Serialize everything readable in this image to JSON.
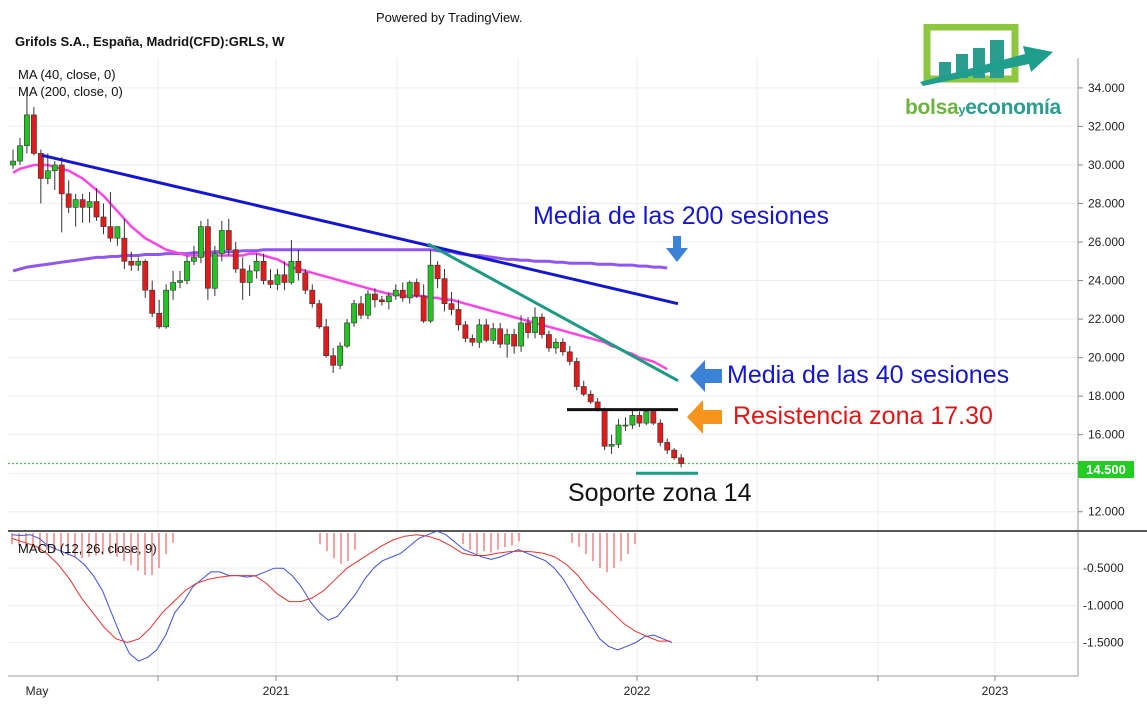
{
  "header": {
    "powered": "Powered by TradingView.",
    "title": "Grifols S.A., España, Madrid(CFD):GRLS, W",
    "ma40_label": "MA (40, close, 0)",
    "ma200_label": "MA (200, close, 0)",
    "macd_label": "MACD (12, 26, close, 9)"
  },
  "logo": {
    "word1": "bolsa",
    "word2": "y",
    "word3": "economía"
  },
  "annotations": {
    "ma200": "Media de las 200 sesiones",
    "ma40": "Media de las 40 sesiones",
    "resistance": "Resistencia zona 17.30",
    "support": "Soporte zona 14"
  },
  "colors": {
    "up": "#22c322",
    "down": "#e11b1b",
    "ma40": "#ff44e6",
    "ma200": "#9057f0",
    "trend_blue": "#1414d4",
    "trend_teal": "#1d9a83",
    "macd": "#3b4fe0",
    "signal": "#e8312a",
    "ann_blue": "#1515d0",
    "ann_red": "#e01515",
    "arrow_blue": "#3b82d6",
    "arrow_orange": "#f7941d",
    "price_tag": "#22cc22"
  },
  "chart_data": {
    "type": "candlestick",
    "symbol": "Grifols S.A., España, Madrid(CFD):GRLS, W",
    "last_price": "14.500",
    "x_labels": [
      "May",
      "2021",
      "2022",
      "2023"
    ],
    "y_ticks": [
      "12.000",
      "14.000",
      "16.000",
      "18.000",
      "20.000",
      "22.000",
      "24.000",
      "26.000",
      "28.000",
      "30.000",
      "32.000",
      "34.000"
    ],
    "y_range": [
      11,
      35.5
    ],
    "macd_ticks": [
      "-0.5000",
      "-1.0000",
      "-1.5000"
    ],
    "macd_range": [
      -1.95,
      0.0
    ],
    "candles": [
      [
        30.0,
        30.8,
        29.8,
        30.2
      ],
      [
        30.2,
        31.4,
        30.0,
        31.0
      ],
      [
        31.0,
        34.0,
        30.6,
        32.6
      ],
      [
        32.6,
        33.0,
        30.5,
        30.6
      ],
      [
        30.6,
        30.8,
        28.0,
        29.3
      ],
      [
        29.3,
        30.6,
        29.0,
        29.7
      ],
      [
        29.7,
        30.2,
        28.7,
        30.0
      ],
      [
        30.0,
        30.4,
        26.5,
        28.5
      ],
      [
        28.5,
        29.2,
        27.5,
        27.8
      ],
      [
        27.8,
        28.5,
        26.8,
        28.2
      ],
      [
        28.2,
        28.5,
        27.0,
        27.8
      ],
      [
        27.8,
        28.6,
        27.0,
        28.1
      ],
      [
        28.1,
        28.8,
        27.1,
        27.3
      ],
      [
        27.3,
        28.0,
        26.4,
        26.8
      ],
      [
        26.8,
        28.6,
        26.0,
        26.2
      ],
      [
        26.2,
        26.8,
        25.8,
        26.8
      ],
      [
        26.2,
        27.2,
        24.6,
        25.0
      ],
      [
        25.0,
        25.5,
        24.5,
        24.8
      ],
      [
        24.8,
        25.2,
        24.5,
        25.0
      ],
      [
        25.0,
        25.1,
        23.1,
        23.5
      ],
      [
        23.5,
        24.0,
        22.1,
        22.3
      ],
      [
        22.3,
        23.0,
        21.5,
        21.6
      ],
      [
        21.6,
        23.8,
        21.5,
        23.5
      ],
      [
        23.5,
        24.5,
        23.0,
        23.9
      ],
      [
        23.9,
        24.5,
        23.6,
        24.0
      ],
      [
        24.0,
        25.3,
        23.8,
        25.0
      ],
      [
        25.0,
        25.8,
        24.8,
        25.2
      ],
      [
        25.2,
        27.1,
        24.9,
        26.8
      ],
      [
        26.8,
        27.2,
        23.0,
        23.6
      ],
      [
        23.6,
        25.8,
        23.2,
        25.4
      ],
      [
        25.4,
        27.1,
        25.0,
        26.6
      ],
      [
        26.6,
        27.2,
        25.3,
        25.6
      ],
      [
        25.6,
        26.0,
        24.4,
        24.6
      ],
      [
        24.6,
        25.2,
        23.0,
        23.9
      ],
      [
        23.9,
        24.8,
        23.2,
        24.5
      ],
      [
        24.5,
        25.4,
        24.1,
        25.0
      ],
      [
        25.0,
        25.4,
        23.8,
        24.0
      ],
      [
        24.0,
        24.6,
        23.6,
        23.8
      ],
      [
        23.8,
        24.6,
        23.5,
        24.3
      ],
      [
        24.3,
        25.0,
        23.5,
        23.9
      ],
      [
        23.9,
        26.1,
        23.8,
        25.0
      ],
      [
        25.0,
        25.6,
        24.0,
        24.4
      ],
      [
        24.4,
        24.6,
        23.3,
        23.5
      ],
      [
        23.5,
        23.8,
        22.6,
        22.8
      ],
      [
        22.8,
        23.0,
        21.5,
        21.6
      ],
      [
        21.6,
        22.0,
        20.0,
        20.1
      ],
      [
        20.1,
        20.5,
        19.2,
        19.6
      ],
      [
        19.6,
        20.8,
        19.4,
        20.6
      ],
      [
        20.6,
        22.0,
        20.5,
        21.8
      ],
      [
        21.8,
        23.0,
        21.6,
        22.8
      ],
      [
        22.8,
        23.2,
        22.0,
        22.2
      ],
      [
        22.2,
        23.5,
        22.0,
        23.3
      ],
      [
        23.3,
        23.6,
        22.6,
        23.0
      ],
      [
        23.0,
        23.2,
        22.7,
        22.9
      ],
      [
        22.9,
        23.4,
        22.5,
        23.2
      ],
      [
        23.2,
        23.8,
        23.0,
        23.5
      ],
      [
        23.5,
        23.9,
        22.9,
        23.1
      ],
      [
        23.1,
        24.0,
        22.8,
        23.9
      ],
      [
        23.9,
        24.1,
        23.1,
        23.2
      ],
      [
        23.2,
        23.8,
        21.8,
        21.9
      ],
      [
        21.9,
        25.6,
        21.8,
        24.8
      ],
      [
        24.8,
        25.0,
        23.6,
        24.1
      ],
      [
        24.1,
        24.6,
        22.4,
        22.8
      ],
      [
        22.8,
        23.4,
        22.2,
        22.5
      ],
      [
        22.5,
        23.0,
        21.4,
        21.7
      ],
      [
        21.7,
        21.9,
        20.8,
        21.0
      ],
      [
        21.0,
        21.2,
        20.6,
        20.8
      ],
      [
        20.8,
        22.0,
        20.5,
        21.7
      ],
      [
        21.7,
        22.0,
        20.8,
        20.9
      ],
      [
        20.9,
        21.8,
        20.7,
        21.5
      ],
      [
        21.5,
        21.8,
        20.5,
        20.7
      ],
      [
        20.7,
        21.5,
        20.0,
        21.2
      ],
      [
        21.2,
        21.5,
        20.2,
        20.6
      ],
      [
        20.6,
        22.2,
        20.3,
        21.8
      ],
      [
        21.8,
        22.1,
        21.0,
        21.3
      ],
      [
        21.3,
        22.6,
        21.0,
        22.1
      ],
      [
        22.1,
        22.3,
        21.0,
        21.2
      ],
      [
        21.2,
        21.4,
        20.3,
        20.5
      ],
      [
        20.5,
        21.0,
        20.2,
        20.8
      ],
      [
        20.8,
        21.0,
        20.1,
        20.3
      ],
      [
        20.3,
        20.6,
        19.6,
        19.8
      ],
      [
        19.8,
        20.0,
        18.3,
        18.5
      ],
      [
        18.5,
        18.8,
        18.0,
        18.1
      ],
      [
        18.1,
        18.3,
        17.6,
        17.7
      ],
      [
        17.7,
        17.9,
        17.2,
        17.3
      ],
      [
        17.3,
        17.4,
        15.2,
        15.4
      ],
      [
        15.4,
        16.0,
        15.0,
        15.5
      ],
      [
        15.5,
        16.8,
        15.3,
        16.5
      ],
      [
        16.5,
        16.9,
        16.2,
        16.5
      ],
      [
        16.5,
        17.3,
        16.3,
        17.0
      ],
      [
        17.0,
        17.2,
        16.4,
        16.6
      ],
      [
        16.6,
        17.3,
        16.5,
        17.2
      ],
      [
        17.2,
        17.3,
        16.5,
        16.6
      ],
      [
        16.6,
        16.8,
        15.4,
        15.6
      ],
      [
        15.6,
        15.8,
        15.0,
        15.2
      ],
      [
        15.2,
        15.3,
        14.7,
        14.8
      ],
      [
        14.8,
        15.0,
        14.3,
        14.5
      ]
    ],
    "ma40": [
      29.6,
      29.8,
      29.9,
      30.0,
      30.0,
      30.0,
      29.9,
      29.8,
      29.7,
      29.5,
      29.3,
      29.0,
      28.7,
      28.4,
      28.0,
      27.6,
      27.2,
      26.8,
      26.5,
      26.2,
      26.0,
      25.8,
      25.6,
      25.5,
      25.4,
      25.3,
      25.3,
      25.3,
      25.3,
      25.3,
      25.3,
      25.3,
      25.3,
      25.3,
      25.4,
      25.4,
      25.3,
      25.2,
      25.1,
      24.9,
      24.7,
      24.6,
      24.5,
      24.4,
      24.3,
      24.2,
      24.1,
      24.0,
      23.9,
      23.8,
      23.7,
      23.6,
      23.5,
      23.4,
      23.3,
      23.3,
      23.2,
      23.2,
      23.2,
      23.2,
      23.1,
      23.1,
      23.0,
      23.0,
      22.9,
      22.8,
      22.7,
      22.6,
      22.5,
      22.4,
      22.3,
      22.2,
      22.1,
      22.0,
      21.9,
      21.8,
      21.7,
      21.6,
      21.5,
      21.4,
      21.3,
      21.2,
      21.1,
      21.0,
      20.9,
      20.8,
      20.6,
      20.5,
      20.3,
      20.2,
      20.0,
      19.9,
      19.8,
      19.6,
      19.4
    ],
    "ma200": [
      24.5,
      24.6,
      24.7,
      24.75,
      24.8,
      24.85,
      24.9,
      24.95,
      25.0,
      25.05,
      25.1,
      25.15,
      25.2,
      25.2,
      25.25,
      25.25,
      25.3,
      25.3,
      25.3,
      25.35,
      25.35,
      25.35,
      25.4,
      25.4,
      25.4,
      25.4,
      25.45,
      25.45,
      25.45,
      25.5,
      25.5,
      25.5,
      25.5,
      25.55,
      25.55,
      25.55,
      25.6,
      25.6,
      25.6,
      25.6,
      25.6,
      25.6,
      25.6,
      25.6,
      25.6,
      25.6,
      25.6,
      25.6,
      25.6,
      25.6,
      25.6,
      25.6,
      25.6,
      25.6,
      25.6,
      25.6,
      25.6,
      25.6,
      25.6,
      25.6,
      25.6,
      25.55,
      25.5,
      25.5,
      25.4,
      25.35,
      25.3,
      25.3,
      25.25,
      25.2,
      25.15,
      25.1,
      25.1,
      25.05,
      25.05,
      25.0,
      25.0,
      25.0,
      24.95,
      24.95,
      24.9,
      24.9,
      24.9,
      24.9,
      24.85,
      24.85,
      24.85,
      24.8,
      24.8,
      24.8,
      24.75,
      24.75,
      24.7,
      24.7,
      24.65
    ],
    "macd": [
      -0.05,
      -0.06,
      -0.05,
      -0.1,
      -0.2,
      -0.25,
      -0.3,
      -0.35,
      -0.45,
      -0.6,
      -0.8,
      -1.1,
      -1.4,
      -1.65,
      -1.75,
      -1.7,
      -1.6,
      -1.4,
      -1.1,
      -0.95,
      -0.75,
      -0.65,
      -0.55,
      -0.55,
      -0.6,
      -0.6,
      -0.62,
      -0.6,
      -0.55,
      -0.5,
      -0.5,
      -0.6,
      -0.75,
      -0.95,
      -1.1,
      -1.2,
      -1.15,
      -1.0,
      -0.85,
      -0.65,
      -0.5,
      -0.4,
      -0.35,
      -0.3,
      -0.2,
      -0.1,
      -0.05,
      0.0,
      -0.05,
      -0.15,
      -0.25,
      -0.3,
      -0.35,
      -0.38,
      -0.35,
      -0.3,
      -0.25,
      -0.3,
      -0.35,
      -0.4,
      -0.5,
      -0.65,
      -0.85,
      -1.05,
      -1.25,
      -1.45,
      -1.55,
      -1.6,
      -1.55,
      -1.5,
      -1.42,
      -1.4,
      -1.45,
      -1.5
    ],
    "signal": [
      -0.1,
      -0.15,
      -0.2,
      -0.3,
      -0.45,
      -0.65,
      -0.9,
      -1.1,
      -1.3,
      -1.45,
      -1.5,
      -1.45,
      -1.3,
      -1.1,
      -0.95,
      -0.8,
      -0.7,
      -0.65,
      -0.62,
      -0.6,
      -0.6,
      -0.6,
      -0.7,
      -0.85,
      -0.95,
      -0.95,
      -0.9,
      -0.8,
      -0.65,
      -0.5,
      -0.4,
      -0.3,
      -0.2,
      -0.12,
      -0.07,
      -0.05,
      -0.07,
      -0.12,
      -0.2,
      -0.3,
      -0.33,
      -0.33,
      -0.3,
      -0.28,
      -0.27,
      -0.28,
      -0.3,
      -0.35,
      -0.45,
      -0.6,
      -0.8,
      -0.95,
      -1.1,
      -1.25,
      -1.35,
      -1.42,
      -1.48,
      -1.48
    ],
    "histogram_note": "red MACD histogram bars at top of lower pane"
  }
}
